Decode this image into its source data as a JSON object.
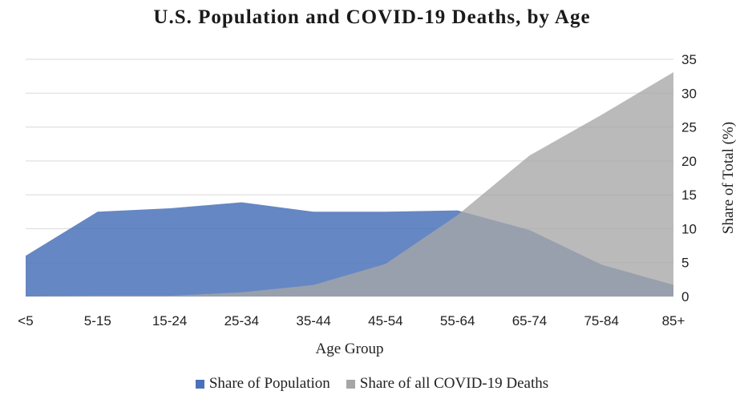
{
  "chart_data": {
    "type": "area",
    "title": "U.S. Population and COVID-19 Deaths, by Age",
    "xlabel": "Age Group",
    "ylabel": "Share of Total (%)",
    "ylim": [
      0,
      35
    ],
    "y_ticks": [
      "0",
      "5",
      "10",
      "15",
      "20",
      "25",
      "30",
      "35"
    ],
    "categories": [
      "<5",
      "5-15",
      "15-24",
      "25-34",
      "35-44",
      "45-54",
      "55-64",
      "65-74",
      "75-84",
      "85+"
    ],
    "grid": true,
    "y_axis_side": "right",
    "legend_position": "bottom",
    "series": [
      {
        "name": "Share of Population",
        "color": "#4a72b8",
        "values": [
          6.0,
          12.5,
          13.0,
          13.9,
          12.5,
          12.5,
          12.7,
          9.8,
          4.7,
          1.7
        ]
      },
      {
        "name": "Share of all COVID-19 Deaths",
        "color": "#a6a6a6",
        "values": [
          0.0,
          0.1,
          0.1,
          0.6,
          1.7,
          4.8,
          12.0,
          20.8,
          26.8,
          33.1
        ]
      }
    ]
  }
}
